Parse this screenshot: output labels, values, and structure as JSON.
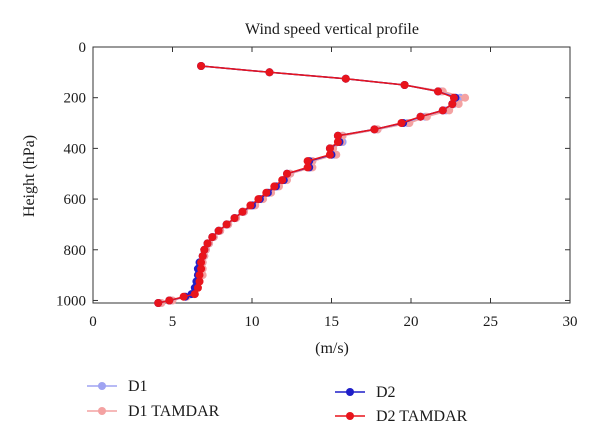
{
  "chart_data": {
    "type": "line",
    "title": "Wind speed vertical profile",
    "xlabel": "(m/s)",
    "ylabel": "Height (hPa)",
    "xlim": [
      0,
      30
    ],
    "ylim": [
      0,
      1010
    ],
    "y_inverted": true,
    "xticks": [
      0,
      5,
      10,
      15,
      20,
      25,
      30
    ],
    "yticks": [
      0,
      200,
      400,
      600,
      800,
      1000
    ],
    "grid": false,
    "legend_position": "bottom",
    "series": [
      {
        "name": "D1",
        "color": "#9fa3f2",
        "points": [
          [
            6.8,
            75
          ],
          [
            11.1,
            100
          ],
          [
            15.9,
            125
          ],
          [
            19.6,
            150
          ],
          [
            21.9,
            175
          ],
          [
            23.1,
            200
          ],
          [
            22.7,
            225
          ],
          [
            22.2,
            250
          ],
          [
            20.9,
            275
          ],
          [
            19.8,
            300
          ],
          [
            17.9,
            325
          ],
          [
            15.7,
            350
          ],
          [
            15.7,
            375
          ],
          [
            15.1,
            400
          ],
          [
            15.2,
            425
          ],
          [
            13.8,
            450
          ],
          [
            13.7,
            475
          ],
          [
            12.4,
            500
          ],
          [
            12.1,
            525
          ],
          [
            11.6,
            550
          ],
          [
            11.1,
            575
          ],
          [
            10.6,
            600
          ],
          [
            10.1,
            625
          ],
          [
            9.5,
            650
          ],
          [
            9.0,
            675
          ],
          [
            8.5,
            700
          ],
          [
            8.0,
            725
          ],
          [
            7.6,
            750
          ],
          [
            7.3,
            775
          ],
          [
            7.1,
            800
          ],
          [
            7.0,
            825
          ],
          [
            6.9,
            850
          ],
          [
            6.8,
            875
          ],
          [
            6.8,
            900
          ],
          [
            6.6,
            925
          ],
          [
            6.5,
            950
          ],
          [
            6.3,
            975
          ],
          [
            5.8,
            985
          ],
          [
            4.9,
            1000
          ],
          [
            4.2,
            1010
          ]
        ]
      },
      {
        "name": "D1 TAMDAR",
        "color": "#f4a2a2",
        "points": [
          [
            6.8,
            75
          ],
          [
            11.1,
            100
          ],
          [
            15.9,
            125
          ],
          [
            19.6,
            150
          ],
          [
            22.0,
            175
          ],
          [
            23.4,
            200
          ],
          [
            23.0,
            225
          ],
          [
            22.4,
            250
          ],
          [
            21.0,
            275
          ],
          [
            19.9,
            300
          ],
          [
            17.9,
            325
          ],
          [
            15.7,
            350
          ],
          [
            15.6,
            375
          ],
          [
            15.1,
            400
          ],
          [
            15.3,
            425
          ],
          [
            13.8,
            450
          ],
          [
            13.8,
            475
          ],
          [
            12.4,
            500
          ],
          [
            12.2,
            525
          ],
          [
            11.7,
            550
          ],
          [
            11.2,
            575
          ],
          [
            10.7,
            600
          ],
          [
            10.2,
            625
          ],
          [
            9.5,
            650
          ],
          [
            9.0,
            675
          ],
          [
            8.5,
            700
          ],
          [
            8.0,
            725
          ],
          [
            7.6,
            750
          ],
          [
            7.3,
            775
          ],
          [
            7.1,
            800
          ],
          [
            7.0,
            825
          ],
          [
            6.9,
            850
          ],
          [
            6.9,
            875
          ],
          [
            6.9,
            900
          ],
          [
            6.7,
            925
          ],
          [
            6.6,
            950
          ],
          [
            6.4,
            975
          ],
          [
            5.9,
            985
          ],
          [
            5.0,
            1000
          ],
          [
            4.3,
            1010
          ]
        ]
      },
      {
        "name": "D2",
        "color": "#1f1fc8",
        "points": [
          [
            6.8,
            75
          ],
          [
            11.1,
            100
          ],
          [
            15.9,
            125
          ],
          [
            19.6,
            150
          ],
          [
            21.7,
            175
          ],
          [
            22.8,
            200
          ],
          [
            22.6,
            225
          ],
          [
            22.0,
            250
          ],
          [
            20.6,
            275
          ],
          [
            19.5,
            300
          ],
          [
            17.7,
            325
          ],
          [
            15.4,
            350
          ],
          [
            15.5,
            375
          ],
          [
            14.9,
            400
          ],
          [
            15.0,
            425
          ],
          [
            13.6,
            450
          ],
          [
            13.6,
            475
          ],
          [
            12.2,
            500
          ],
          [
            12.0,
            525
          ],
          [
            11.5,
            550
          ],
          [
            11.0,
            575
          ],
          [
            10.5,
            600
          ],
          [
            10.0,
            625
          ],
          [
            9.4,
            650
          ],
          [
            8.9,
            675
          ],
          [
            8.4,
            700
          ],
          [
            7.9,
            725
          ],
          [
            7.5,
            750
          ],
          [
            7.2,
            775
          ],
          [
            7.0,
            800
          ],
          [
            6.9,
            825
          ],
          [
            6.7,
            850
          ],
          [
            6.6,
            875
          ],
          [
            6.6,
            900
          ],
          [
            6.5,
            925
          ],
          [
            6.4,
            950
          ],
          [
            6.2,
            975
          ],
          [
            5.8,
            985
          ],
          [
            4.8,
            1000
          ],
          [
            4.1,
            1010
          ]
        ]
      },
      {
        "name": "D2 TAMDAR",
        "color": "#e8141c",
        "points": [
          [
            6.8,
            75
          ],
          [
            11.1,
            100
          ],
          [
            15.9,
            125
          ],
          [
            19.6,
            150
          ],
          [
            21.7,
            175
          ],
          [
            22.7,
            200
          ],
          [
            22.6,
            225
          ],
          [
            22.0,
            250
          ],
          [
            20.6,
            275
          ],
          [
            19.4,
            300
          ],
          [
            17.7,
            325
          ],
          [
            15.4,
            350
          ],
          [
            15.4,
            375
          ],
          [
            14.9,
            400
          ],
          [
            14.9,
            425
          ],
          [
            13.5,
            450
          ],
          [
            13.5,
            475
          ],
          [
            12.2,
            500
          ],
          [
            11.9,
            525
          ],
          [
            11.4,
            550
          ],
          [
            10.9,
            575
          ],
          [
            10.4,
            600
          ],
          [
            9.9,
            625
          ],
          [
            9.4,
            650
          ],
          [
            8.9,
            675
          ],
          [
            8.4,
            700
          ],
          [
            7.9,
            725
          ],
          [
            7.5,
            750
          ],
          [
            7.2,
            775
          ],
          [
            7.0,
            800
          ],
          [
            6.9,
            825
          ],
          [
            6.8,
            850
          ],
          [
            6.8,
            875
          ],
          [
            6.7,
            900
          ],
          [
            6.7,
            925
          ],
          [
            6.6,
            950
          ],
          [
            6.4,
            975
          ],
          [
            5.7,
            985
          ],
          [
            4.8,
            1000
          ],
          [
            4.1,
            1010
          ]
        ]
      }
    ]
  }
}
